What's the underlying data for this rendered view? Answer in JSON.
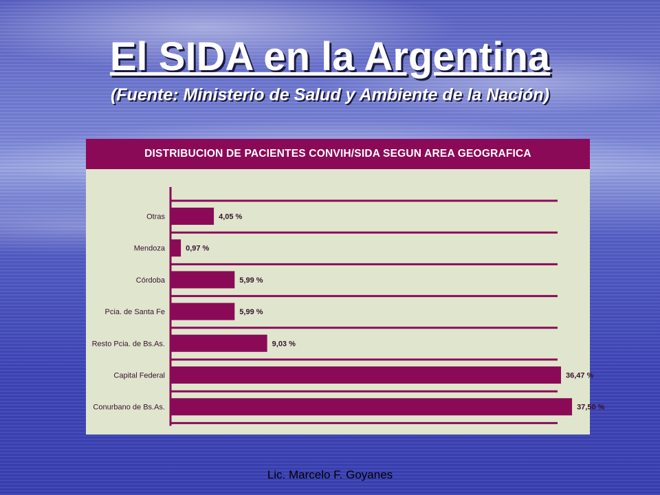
{
  "slide": {
    "title": "El SIDA en la Argentina",
    "subtitle": "(Fuente: Ministerio de Salud y Ambiente de la Nación)",
    "footer": "Lic. Marcelo F. Goyanes"
  },
  "colors": {
    "bar": "#8b0a58",
    "panel": "#dfe6cd",
    "text": "#3a1030"
  },
  "chart_data": {
    "type": "bar",
    "orientation": "horizontal",
    "title": "DISTRIBUCION DE PACIENTES CONVIH/SIDA SEGUN AREA GEOGRAFICA",
    "categories": [
      "Otras",
      "Mendoza",
      "Córdoba",
      "Pcia. de Santa Fe",
      "Resto Pcia. de Bs.As.",
      "Capital Federal",
      "Conurbano de Bs.As."
    ],
    "values": [
      4.05,
      0.97,
      5.99,
      5.99,
      9.03,
      36.47,
      37.5
    ],
    "value_labels": [
      "4,05 %",
      "0,97 %",
      "5,99 %",
      "5,99 %",
      "9,03 %",
      "36,47 %",
      "37,50 %"
    ],
    "xlabel": "",
    "ylabel": "",
    "xlim": [
      0,
      40
    ],
    "grid": true
  }
}
